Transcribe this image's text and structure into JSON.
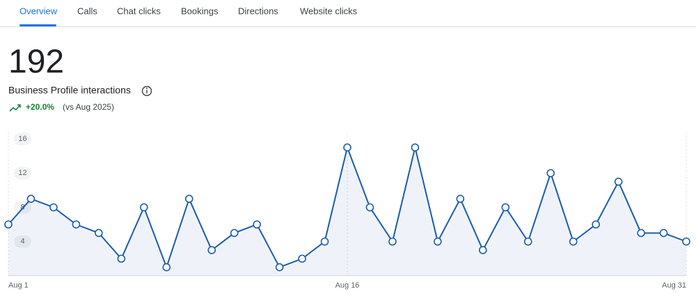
{
  "tabs": [
    "Overview",
    "Calls",
    "Chat clicks",
    "Bookings",
    "Directions",
    "Website clicks"
  ],
  "summary": {
    "total": 192,
    "label": "Business Profile interactions",
    "change": "+20.0%",
    "comparison": "(vs Aug 2025)"
  },
  "chart_data": {
    "type": "line",
    "categories": [
      "Aug 1",
      null,
      null,
      null,
      null,
      null,
      null,
      null,
      null,
      null,
      null,
      null,
      null,
      null,
      null,
      "Aug 16",
      null,
      null,
      null,
      null,
      null,
      null,
      null,
      null,
      null,
      null,
      null,
      null,
      null,
      null,
      "Aug 31"
    ],
    "series": [
      {
        "name": "Interactions",
        "color": "#1a5cb0",
        "values": [
          6,
          9,
          8,
          6,
          5,
          2,
          8,
          1,
          9,
          3,
          5,
          6,
          1,
          2,
          4,
          15,
          8,
          4,
          15,
          4,
          9,
          3,
          8,
          4,
          12,
          4,
          6,
          11,
          5,
          5,
          4
        ]
      }
    ],
    "ylim": [
      0,
      16
    ],
    "yticks": [
      4,
      8,
      12,
      16
    ],
    "grid": false
  }
}
